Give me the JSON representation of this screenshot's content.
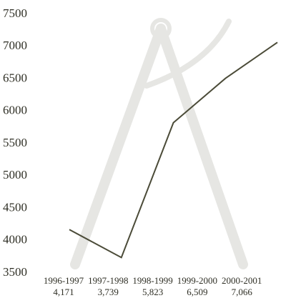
{
  "chart_data": {
    "type": "line",
    "categories": [
      "1996-1997",
      "1997-1998",
      "1998-1999",
      "1999-2000",
      "2000-2001"
    ],
    "values": [
      4171,
      3739,
      5823,
      6509,
      7066
    ],
    "value_labels": [
      "4,171",
      "3,739",
      "5,823",
      "6,509",
      "7,066"
    ],
    "color": "#4b4b38",
    "ylim": [
      3500,
      7500
    ],
    "yticks": [
      3500,
      4000,
      4500,
      5000,
      5500,
      6000,
      6500,
      7000,
      7500
    ],
    "grid": false
  }
}
